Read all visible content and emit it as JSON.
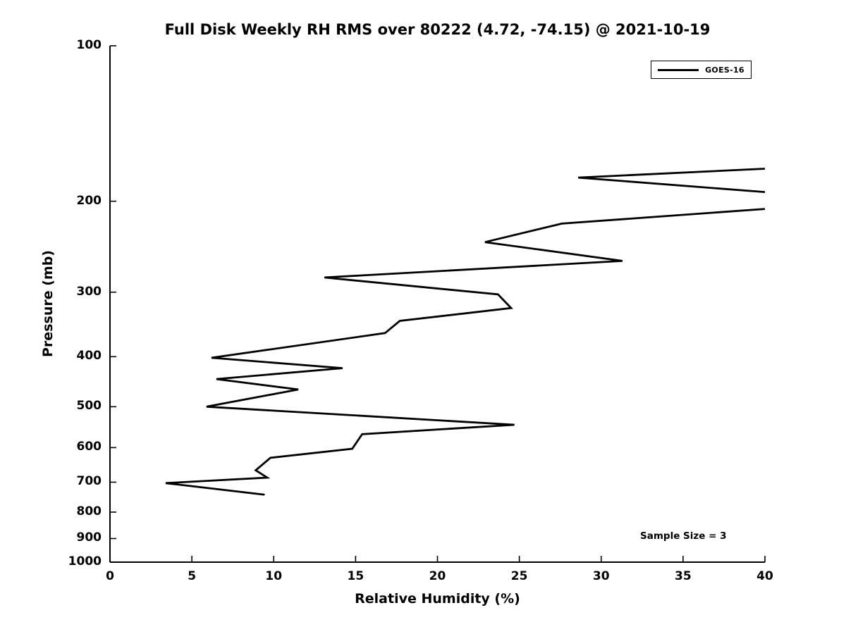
{
  "figure": {
    "background": "#ffffff",
    "text_color": "#000000"
  },
  "chart_data": {
    "type": "line",
    "title": "Full Disk Weekly RH RMS over 80222 (4.72, -74.15) @ 2021-10-19",
    "xlabel": "Relative Humidity (%)",
    "ylabel": "Pressure (mb)",
    "x_axis": {
      "min": 0,
      "max": 40,
      "ticks": [
        0,
        5,
        10,
        15,
        20,
        25,
        30,
        35,
        40
      ],
      "grid": false
    },
    "y_axis": {
      "scale": "log",
      "min": 100,
      "max": 1000,
      "inverted": true,
      "ticks": [
        100,
        200,
        300,
        400,
        500,
        600,
        700,
        800,
        900,
        1000
      ],
      "grid": false
    },
    "legend_position": "upper right",
    "series": [
      {
        "name": "GOES-16",
        "color": "#000000",
        "line_width": 2.8,
        "clip_note": "points flagged clipped=true lie at/beyond the x-axis max (40%); their segments are clipped at the right plot edge",
        "points": [
          {
            "pressure_mb": 173,
            "rh_pct": 40.0,
            "clipped": true
          },
          {
            "pressure_mb": 180,
            "rh_pct": 28.6
          },
          {
            "pressure_mb": 192,
            "rh_pct": 40.0,
            "clipped": true
          },
          {
            "pressure_mb": 207,
            "rh_pct": 40.0,
            "clipped": true
          },
          {
            "pressure_mb": 221,
            "rh_pct": 27.6
          },
          {
            "pressure_mb": 240,
            "rh_pct": 22.9
          },
          {
            "pressure_mb": 261,
            "rh_pct": 31.3
          },
          {
            "pressure_mb": 281,
            "rh_pct": 13.1
          },
          {
            "pressure_mb": 303,
            "rh_pct": 23.7
          },
          {
            "pressure_mb": 322,
            "rh_pct": 24.5
          },
          {
            "pressure_mb": 341,
            "rh_pct": 17.7
          },
          {
            "pressure_mb": 360,
            "rh_pct": 16.8
          },
          {
            "pressure_mb": 402,
            "rh_pct": 6.2
          },
          {
            "pressure_mb": 421,
            "rh_pct": 14.2
          },
          {
            "pressure_mb": 442,
            "rh_pct": 6.5
          },
          {
            "pressure_mb": 463,
            "rh_pct": 11.5
          },
          {
            "pressure_mb": 500,
            "rh_pct": 5.9
          },
          {
            "pressure_mb": 542,
            "rh_pct": 24.7
          },
          {
            "pressure_mb": 565,
            "rh_pct": 15.4
          },
          {
            "pressure_mb": 603,
            "rh_pct": 14.8
          },
          {
            "pressure_mb": 628,
            "rh_pct": 9.8
          },
          {
            "pressure_mb": 664,
            "rh_pct": 8.9
          },
          {
            "pressure_mb": 686,
            "rh_pct": 9.6
          },
          {
            "pressure_mb": 703,
            "rh_pct": 3.4
          },
          {
            "pressure_mb": 740,
            "rh_pct": 9.4
          }
        ]
      }
    ],
    "annotations": [
      {
        "text": "Sample Size = 3",
        "anchor": "lower right"
      }
    ]
  }
}
